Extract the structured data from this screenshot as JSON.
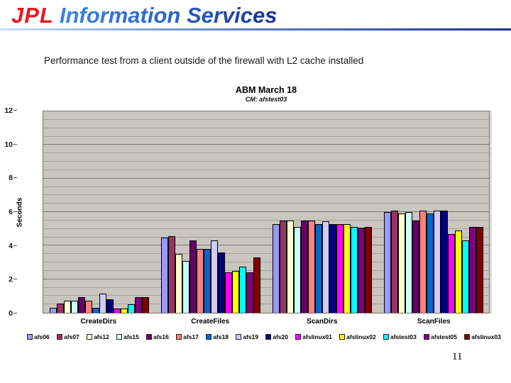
{
  "header": {
    "logo_jpl": "JPL",
    "logo_services": "Information Services",
    "jpl_color": "#e8191f",
    "services_color": "#2a5fc4"
  },
  "slide": {
    "title": "Performance test from a client outside of the firewall with L2 cache installed",
    "page_number": "11"
  },
  "chart_data": {
    "type": "bar",
    "title": "ABM March 18",
    "subtitle": "CM:  afstest03",
    "ylabel": "Seconds",
    "ylim": [
      0,
      12
    ],
    "ytick_interval": 2,
    "minor_grid_interval": 0.5,
    "grid": true,
    "legend_position": "bottom",
    "plot_bg": "#c9c5bf",
    "categories": [
      "CreateDirs",
      "CreateFiles",
      "ScanDirs",
      "ScanFiles"
    ],
    "series": [
      {
        "name": "afs06",
        "color": "#9999FF",
        "values": [
          0.3,
          4.5,
          5.3,
          6.0
        ]
      },
      {
        "name": "afs07",
        "color": "#993366",
        "values": [
          0.55,
          4.55,
          5.5,
          6.1
        ]
      },
      {
        "name": "afs12",
        "color": "#FFFFCC",
        "values": [
          0.7,
          3.5,
          5.5,
          5.9
        ]
      },
      {
        "name": "afs15",
        "color": "#CCFFFF",
        "values": [
          0.7,
          3.1,
          5.1,
          6.0
        ]
      },
      {
        "name": "afs16",
        "color": "#660066",
        "values": [
          0.95,
          4.3,
          5.5,
          5.5
        ]
      },
      {
        "name": "afs17",
        "color": "#FF8080",
        "values": [
          0.7,
          3.8,
          5.5,
          6.1
        ]
      },
      {
        "name": "afs18",
        "color": "#0066CC",
        "values": [
          0.3,
          3.8,
          5.3,
          5.9
        ]
      },
      {
        "name": "afs19",
        "color": "#CCCCFF",
        "values": [
          1.15,
          4.3,
          5.45,
          6.1
        ]
      },
      {
        "name": "afs20",
        "color": "#000080",
        "values": [
          0.8,
          3.6,
          5.3,
          6.1
        ]
      },
      {
        "name": "afslinux01",
        "color": "#FF00FF",
        "values": [
          0.25,
          2.4,
          5.3,
          4.7
        ]
      },
      {
        "name": "afslinux02",
        "color": "#FFFF00",
        "values": [
          0.25,
          2.5,
          5.3,
          4.9
        ]
      },
      {
        "name": "afstest03",
        "color": "#00FFFF",
        "values": [
          0.5,
          2.75,
          5.1,
          4.3
        ]
      },
      {
        "name": "afstest05",
        "color": "#800080",
        "values": [
          0.95,
          2.4,
          5.05,
          5.1
        ]
      },
      {
        "name": "afslinux03",
        "color": "#800000",
        "values": [
          0.95,
          3.3,
          5.1,
          5.1
        ]
      }
    ]
  }
}
